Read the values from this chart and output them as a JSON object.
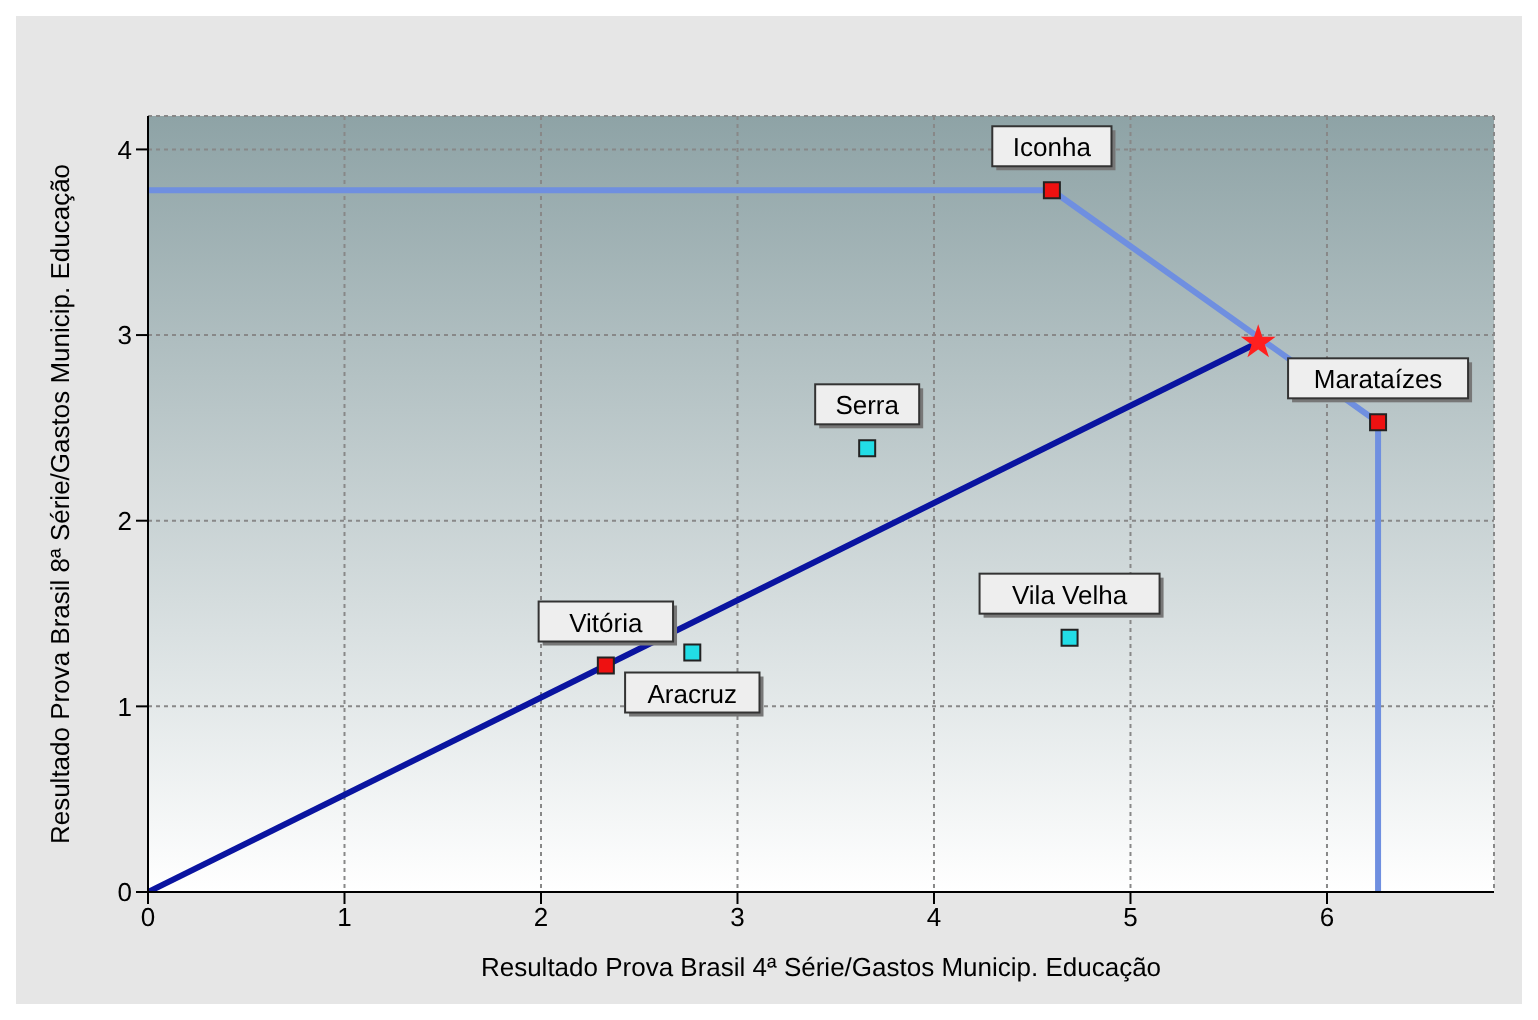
{
  "chart_data": {
    "type": "scatter",
    "xlabel": "Resultado Prova Brasil 4ª Série/Gastos Municip. Educação",
    "ylabel": "Resultado Prova Brasil 8ª Série/Gastos Municip. Educação",
    "xlim": [
      0,
      6.85
    ],
    "xticks": [
      0,
      1,
      2,
      3,
      4,
      5,
      6
    ],
    "ylim": [
      0,
      4.18
    ],
    "yticks": [
      0,
      1,
      2,
      3,
      4
    ],
    "grid": true,
    "legend": false,
    "series": [
      {
        "type": "line",
        "color": "#6f8fe0",
        "x": [
          0,
          4.6,
          6.26,
          6.26
        ],
        "values": [
          3.78,
          3.78,
          2.53,
          0
        ],
        "marker": "none"
      },
      {
        "type": "line",
        "color": "#0a14a0",
        "x": [
          0,
          5.65
        ],
        "values": [
          0,
          2.96
        ],
        "marker": "none"
      },
      {
        "color": "#ee1111",
        "x": [
          4.6,
          6.26,
          2.33
        ],
        "values": [
          3.78,
          2.53,
          1.22
        ],
        "marker": "square"
      },
      {
        "color": "#22dde6",
        "x": [
          3.66,
          2.77,
          4.69
        ],
        "values": [
          2.39,
          1.29,
          1.37
        ],
        "marker": "square"
      },
      {
        "color": "#ff2020",
        "x": [
          5.65
        ],
        "values": [
          2.96
        ],
        "marker": "star"
      }
    ],
    "annotations": [
      {
        "text": "Iconha",
        "x": 4.6,
        "y": 3.78
      },
      {
        "text": "Marataízes",
        "x": 6.26,
        "y": 2.53
      },
      {
        "text": "Vitória",
        "x": 2.33,
        "y": 1.22
      },
      {
        "text": "Serra",
        "x": 3.66,
        "y": 2.39
      },
      {
        "text": "Aracruz",
        "x": 2.77,
        "y": 1.29
      },
      {
        "text": "Vila Velha",
        "x": 4.69,
        "y": 1.37
      }
    ]
  }
}
